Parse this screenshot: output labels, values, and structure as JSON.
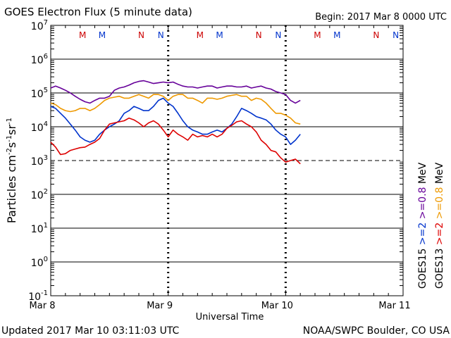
{
  "header": {
    "title": "GOES Electron Flux (5 minute data)",
    "begin": "Begin: 2017 Mar 8 0000 UTC"
  },
  "footer": {
    "updated": "Updated 2017 Mar 10 03:11:03 UTC",
    "source": "NOAA/SWPC Boulder, CO USA"
  },
  "chart_data": {
    "type": "line",
    "title": "GOES Electron Flux (5 minute data)",
    "xlabel": "Universal Time",
    "ylabel": "Particles cm-2s-1sr-1",
    "ylabel_parts": {
      "base": "Particles cm",
      "sup1": "-2",
      "mid1": "s",
      "sup2": "-1",
      "mid2": "sr",
      "sup3": "-1"
    },
    "y_scale": "log",
    "ylim_exp": [
      -1,
      7
    ],
    "y_ticks": [
      {
        "exp": -1,
        "label": "10",
        "sup": "-1"
      },
      {
        "exp": 0,
        "label": "10",
        "sup": "0"
      },
      {
        "exp": 1,
        "label": "10",
        "sup": "1"
      },
      {
        "exp": 2,
        "label": "10",
        "sup": "2"
      },
      {
        "exp": 3,
        "label": "10",
        "sup": "3"
      },
      {
        "exp": 4,
        "label": "10",
        "sup": "4"
      },
      {
        "exp": 5,
        "label": "10",
        "sup": "5"
      },
      {
        "exp": 6,
        "label": "10",
        "sup": "6"
      },
      {
        "exp": 7,
        "label": "10",
        "sup": "7"
      }
    ],
    "xlim_hours": [
      0,
      72
    ],
    "x_ticks": [
      {
        "hour": 0,
        "label": "Mar 8"
      },
      {
        "hour": 24,
        "label": "Mar 9"
      },
      {
        "hour": 48,
        "label": "Mar 10"
      },
      {
        "hour": 72,
        "label": "Mar 11"
      }
    ],
    "threshold_exp": 3,
    "markers": [
      {
        "hour": 6.5,
        "label": "M",
        "color": "#cc0000"
      },
      {
        "hour": 10.5,
        "label": "M",
        "color": "#0033cc"
      },
      {
        "hour": 18.5,
        "label": "N",
        "color": "#cc0000"
      },
      {
        "hour": 22.5,
        "label": "N",
        "color": "#0033cc"
      },
      {
        "hour": 30.5,
        "label": "M",
        "color": "#cc0000"
      },
      {
        "hour": 34.5,
        "label": "M",
        "color": "#0033cc"
      },
      {
        "hour": 42.5,
        "label": "N",
        "color": "#cc0000"
      },
      {
        "hour": 46.5,
        "label": "N",
        "color": "#0033cc"
      },
      {
        "hour": 54.5,
        "label": "M",
        "color": "#cc0000"
      },
      {
        "hour": 58.5,
        "label": "M",
        "color": "#0033cc"
      },
      {
        "hour": 66.5,
        "label": "N",
        "color": "#cc0000"
      },
      {
        "hour": 70.5,
        "label": "N",
        "color": "#0033cc"
      }
    ],
    "legend_groups": [
      {
        "label": "GOES15 >=2 >=0.8 MeV",
        "parts": [
          {
            "text": "GOES15",
            "color": "#000000"
          },
          {
            "text": ">=2",
            "color": "#0033cc"
          },
          {
            "text": ">=0.8",
            "color": "#660099"
          },
          {
            "text": "MeV",
            "color": "#000000"
          }
        ]
      },
      {
        "label": "GOES13 >=2 >=0.8 MeV",
        "parts": [
          {
            "text": "GOES13",
            "color": "#000000"
          },
          {
            "text": ">=2",
            "color": "#dd0000"
          },
          {
            "text": ">=0.8",
            "color": "#ee9900"
          },
          {
            "text": "MeV",
            "color": "#000000"
          }
        ]
      }
    ],
    "series": [
      {
        "name": "GOES15 >=0.8 MeV",
        "color": "#660099",
        "x": [
          0,
          1,
          2,
          3,
          4,
          5,
          6,
          7,
          8,
          9,
          10,
          11,
          12,
          13,
          14,
          15,
          16,
          17,
          18,
          19,
          20,
          21,
          22,
          23,
          24,
          25,
          26,
          27,
          28,
          29,
          30,
          31,
          32,
          33,
          34,
          35,
          36,
          37,
          38,
          39,
          40,
          41,
          42,
          43,
          44,
          45,
          46,
          47,
          48,
          49,
          50,
          51
        ],
        "y": [
          140000.0,
          160000.0,
          140000.0,
          120000.0,
          100000.0,
          80000.0,
          65000.0,
          55000.0,
          50000.0,
          60000.0,
          70000.0,
          70000.0,
          80000.0,
          120000.0,
          140000.0,
          150000.0,
          170000.0,
          200000.0,
          220000.0,
          230000.0,
          210000.0,
          190000.0,
          200000.0,
          210000.0,
          200000.0,
          210000.0,
          180000.0,
          160000.0,
          150000.0,
          150000.0,
          140000.0,
          150000.0,
          160000.0,
          160000.0,
          140000.0,
          150000.0,
          160000.0,
          160000.0,
          150000.0,
          150000.0,
          160000.0,
          140000.0,
          150000.0,
          160000.0,
          140000.0,
          130000.0,
          110000.0,
          100000.0,
          90000.0,
          60000.0,
          50000.0,
          60000.0
        ]
      },
      {
        "name": "GOES13 >=0.8 MeV",
        "color": "#ee9900",
        "x": [
          0,
          1,
          2,
          3,
          4,
          5,
          6,
          7,
          8,
          9,
          10,
          11,
          12,
          13,
          14,
          15,
          16,
          17,
          18,
          19,
          20,
          21,
          22,
          23,
          24,
          25,
          26,
          27,
          28,
          29,
          30,
          31,
          32,
          33,
          34,
          35,
          36,
          37,
          38,
          39,
          40,
          41,
          42,
          43,
          44,
          45,
          46,
          47,
          48,
          49,
          50,
          51
        ],
        "y": [
          50000.0,
          45000.0,
          35000.0,
          30000.0,
          28000.0,
          30000.0,
          35000.0,
          35000.0,
          30000.0,
          35000.0,
          45000.0,
          60000.0,
          70000.0,
          75000.0,
          80000.0,
          70000.0,
          70000.0,
          80000.0,
          90000.0,
          80000.0,
          70000.0,
          90000.0,
          90000.0,
          80000.0,
          60000.0,
          80000.0,
          90000.0,
          90000.0,
          70000.0,
          70000.0,
          60000.0,
          50000.0,
          70000.0,
          70000.0,
          65000.0,
          70000.0,
          80000.0,
          85000.0,
          90000.0,
          80000.0,
          80000.0,
          60000.0,
          70000.0,
          65000.0,
          50000.0,
          35000.0,
          25000.0,
          25000.0,
          22000.0,
          18000.0,
          13000.0,
          12000.0
        ]
      },
      {
        "name": "GOES15 >=2 MeV",
        "color": "#0033cc",
        "x": [
          0,
          1,
          2,
          3,
          4,
          5,
          6,
          7,
          8,
          9,
          10,
          11,
          12,
          13,
          14,
          15,
          16,
          17,
          18,
          19,
          20,
          21,
          22,
          23,
          24,
          25,
          26,
          27,
          28,
          29,
          30,
          31,
          32,
          33,
          34,
          35,
          36,
          37,
          38,
          39,
          40,
          41,
          42,
          43,
          44,
          45,
          46,
          47,
          48,
          49,
          50,
          51
        ],
        "y": [
          40000.0,
          35000.0,
          25000.0,
          18000.0,
          12000.0,
          8000.0,
          5000.0,
          4000.0,
          3500.0,
          4000.0,
          6000.0,
          8000.0,
          10000.0,
          12000.0,
          15000.0,
          25000.0,
          30000.0,
          40000.0,
          35000.0,
          30000.0,
          30000.0,
          40000.0,
          60000.0,
          70000.0,
          50000.0,
          40000.0,
          25000.0,
          15000.0,
          10000.0,
          8000.0,
          7000.0,
          6000.0,
          6000.0,
          7000.0,
          8000.0,
          7000.0,
          9000.0,
          12000.0,
          20000.0,
          35000.0,
          30000.0,
          25000.0,
          20000.0,
          18000.0,
          16000.0,
          12000.0,
          8000.0,
          6000.0,
          5000.0,
          3000.0,
          4000.0,
          6000.0
        ]
      },
      {
        "name": "GOES13 >=2 MeV",
        "color": "#dd0000",
        "x": [
          0,
          1,
          2,
          3,
          4,
          5,
          6,
          7,
          8,
          9,
          10,
          11,
          12,
          13,
          14,
          15,
          16,
          17,
          18,
          19,
          20,
          21,
          22,
          23,
          24,
          25,
          26,
          27,
          28,
          29,
          30,
          31,
          32,
          33,
          34,
          35,
          36,
          37,
          38,
          39,
          40,
          41,
          42,
          43,
          44,
          45,
          46,
          47,
          48,
          49,
          50,
          51
        ],
        "y": [
          3500.0,
          2500.0,
          1500.0,
          1600.0,
          2000.0,
          2200.0,
          2400.0,
          2500.0,
          3000.0,
          3500.0,
          4500.0,
          8000.0,
          12000.0,
          13000.0,
          14000.0,
          15000.0,
          18000.0,
          16000.0,
          13000.0,
          10000.0,
          13000.0,
          15000.0,
          12000.0,
          8000.0,
          5000.0,
          8000.0,
          6000.0,
          5000.0,
          4000.0,
          6000.0,
          5000.0,
          5500.0,
          5000.0,
          6000.0,
          5000.0,
          6000.0,
          9000.0,
          11000.0,
          14000.0,
          15000.0,
          12000.0,
          10000.0,
          7000.0,
          4000.0,
          3000.0,
          2000.0,
          1800.0,
          1200.0,
          900.0,
          1000.0,
          1100.0,
          800.0
        ]
      }
    ],
    "grid": true,
    "legend_position": "right"
  }
}
